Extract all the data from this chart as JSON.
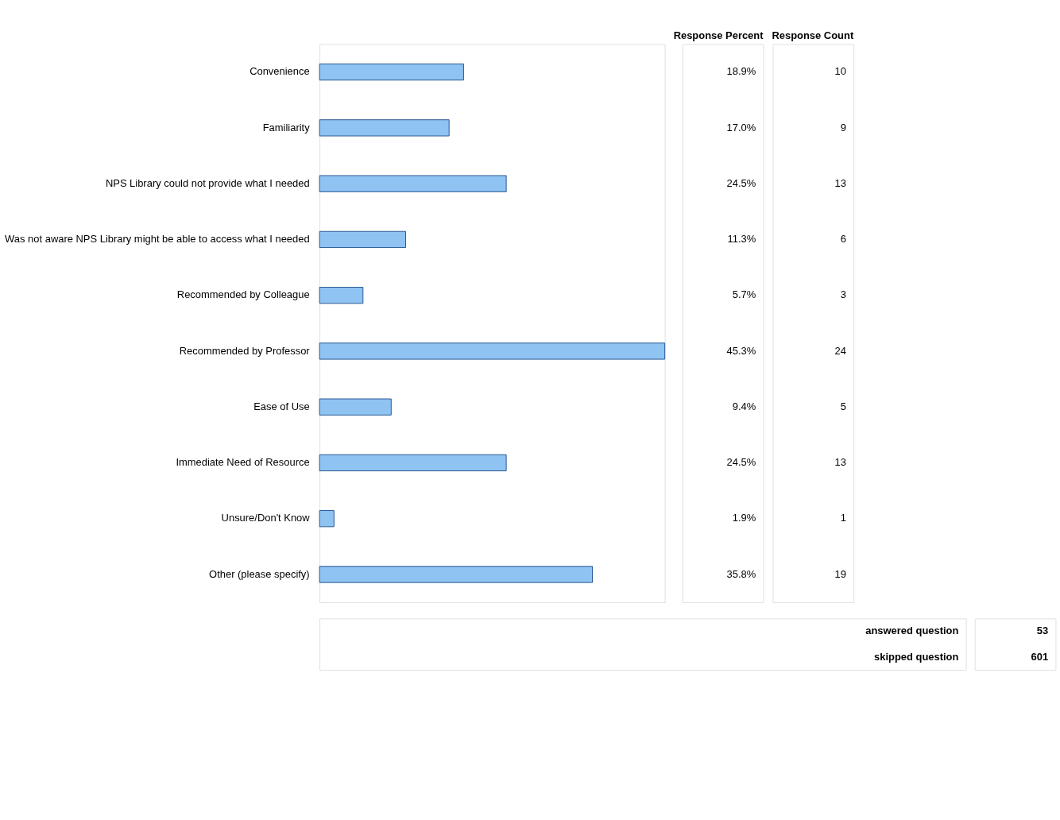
{
  "chart_data": {
    "type": "bar",
    "orientation": "horizontal",
    "xlabel": "Response Percent",
    "categories": [
      "Convenience",
      "Familiarity",
      "NPS Library could not provide what I needed",
      "Was not aware NPS Library might be able to access what I needed",
      "Recommended by Colleague",
      "Recommended by Professor",
      "Ease of Use",
      "Immediate Need of Resource",
      "Unsure/Don't Know",
      "Other (please specify)"
    ],
    "values": [
      18.9,
      17.0,
      24.5,
      11.3,
      5.7,
      45.3,
      9.4,
      24.5,
      1.9,
      35.8
    ],
    "value_labels": [
      "18.9%",
      "17.0%",
      "24.5%",
      "11.3%",
      "5.7%",
      "45.3%",
      "9.4%",
      "24.5%",
      "1.9%",
      "35.8%"
    ],
    "color": "#8ec3f2",
    "annotations": [
      "Response Count",
      "10",
      "9",
      "13",
      "6",
      "3",
      "24",
      "5",
      "13",
      "1",
      "19",
      "answered question",
      "53",
      "skipped question",
      "601"
    ]
  }
}
